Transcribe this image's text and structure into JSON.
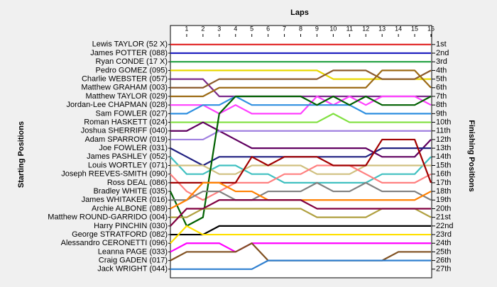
{
  "chart_data": {
    "type": "bump",
    "x_label": "Laps",
    "y_label": "Starting Positions",
    "y2_label": "Finishing Positions",
    "x": [
      0,
      1,
      2,
      3,
      4,
      5,
      6,
      7,
      8,
      9,
      10,
      11,
      12,
      13,
      14,
      15,
      16
    ],
    "xlim": [
      0,
      16
    ],
    "xticks": [
      1,
      2,
      3,
      4,
      5,
      6,
      7,
      8,
      9,
      10,
      11,
      12,
      13,
      14,
      15,
      16
    ],
    "ylim": [
      -1.2,
      28
    ],
    "finishing_labels": [
      "1st",
      "2nd",
      "3rd",
      "4th",
      "5th",
      "6th",
      "7th",
      "8th",
      "9th",
      "10th",
      "11th",
      "12th",
      "13th",
      "14th",
      "15th",
      "16th",
      "17th",
      "18th",
      "19th",
      "20th",
      "21st",
      "22nd",
      "23rd",
      "24th",
      "25th",
      "26th",
      "27th"
    ],
    "series": [
      {
        "name": "Lewis TAYLOR (52 X)",
        "color": "#e02020",
        "values": [
          1,
          1,
          1,
          1,
          1,
          1,
          1,
          1,
          1,
          1,
          1,
          1,
          1,
          1,
          1,
          1,
          1
        ]
      },
      {
        "name": "James POTTER (088)",
        "color": "#2020c0",
        "values": [
          2,
          2,
          2,
          2,
          2,
          2,
          2,
          2,
          2,
          2,
          2,
          2,
          2,
          2,
          2,
          2,
          2
        ]
      },
      {
        "name": "Ryan CONDE (17 X)",
        "color": "#20a040",
        "values": [
          3,
          3,
          3,
          3,
          3,
          3,
          3,
          3,
          3,
          3,
          3,
          3,
          3,
          3,
          3,
          3,
          3
        ]
      },
      {
        "name": "Pedro GOMEZ (095)",
        "color": "#e8d800",
        "values": [
          4,
          4,
          4,
          4,
          4,
          4,
          4,
          4,
          4,
          4,
          5,
          5,
          5,
          5,
          5,
          5,
          5
        ]
      },
      {
        "name": "Charlie WEBSTER (057)",
        "color": "#7a2a8a",
        "values": [
          5,
          5,
          5,
          7,
          7,
          7,
          7,
          7,
          7,
          7,
          7,
          7,
          7,
          7,
          7,
          7,
          7
        ]
      },
      {
        "name": "Matthew GRAHAM (003)",
        "color": "#8b5a2b",
        "values": [
          6,
          6,
          6,
          5,
          5,
          5,
          5,
          5,
          5,
          5,
          4,
          4,
          4,
          5,
          5,
          5,
          4
        ]
      },
      {
        "name": "Matthew TAYLOR (029)",
        "color": "#9c6a14",
        "values": [
          7,
          7,
          7,
          6,
          6,
          6,
          6,
          6,
          6,
          6,
          6,
          6,
          6,
          4,
          4,
          4,
          6
        ]
      },
      {
        "name": "Jordan-Lee CHAPMAN (028)",
        "color": "#ff40ff",
        "values": [
          8,
          8,
          8,
          9,
          8,
          9,
          9,
          9,
          9,
          7,
          8,
          7,
          8,
          7,
          7,
          7,
          8
        ]
      },
      {
        "name": "Sam FOWLER (027)",
        "color": "#3090e0",
        "values": [
          9,
          9,
          8,
          8,
          7,
          8,
          8,
          8,
          8,
          8,
          8,
          8,
          9,
          9,
          9,
          9,
          9
        ]
      },
      {
        "name": "Roman HASKETT (024)",
        "color": "#80e040",
        "values": [
          10,
          10,
          10,
          10,
          10,
          10,
          10,
          10,
          10,
          10,
          9,
          10,
          10,
          10,
          10,
          10,
          10
        ]
      },
      {
        "name": "Joshua SHERRIFF (040)",
        "color": "#600060",
        "values": [
          11,
          11,
          10,
          11,
          12,
          13,
          13,
          13,
          13,
          13,
          13,
          13,
          13,
          14,
          14,
          14,
          12
        ]
      },
      {
        "name": "Adam SPARROW (019)",
        "color": "#a080e0",
        "values": [
          12,
          12,
          12,
          11,
          11,
          11,
          11,
          11,
          11,
          11,
          11,
          11,
          11,
          11,
          11,
          11,
          11
        ]
      },
      {
        "name": "Joe FOWLER (031)",
        "color": "#202080",
        "values": [
          13,
          14,
          15,
          14,
          14,
          14,
          14,
          14,
          14,
          14,
          14,
          14,
          14,
          13,
          13,
          13,
          13
        ]
      },
      {
        "name": "James PASHLEY (052)",
        "color": "#40c0c0",
        "values": [
          14,
          16,
          16,
          15,
          15,
          16,
          16,
          17,
          17,
          17,
          17,
          17,
          17,
          16,
          16,
          16,
          14
        ]
      },
      {
        "name": "Louis WORTLEY (071)",
        "color": "#d0c080",
        "values": [
          15,
          15,
          15,
          16,
          16,
          15,
          15,
          15,
          15,
          16,
          16,
          16,
          15,
          15,
          15,
          15,
          15
        ]
      },
      {
        "name": "Joseph REEVES-SMITH (090)",
        "color": "#ff8080",
        "values": [
          16,
          18,
          19,
          18,
          17,
          17,
          17,
          16,
          16,
          15,
          15,
          15,
          16,
          17,
          17,
          17,
          16
        ]
      },
      {
        "name": "Ross DEAL (086)",
        "color": "#a00000",
        "values": [
          17,
          17,
          17,
          17,
          17,
          14,
          15,
          14,
          14,
          14,
          15,
          15,
          15,
          12,
          12,
          12,
          17
        ]
      },
      {
        "name": "Bradley WHITE (035)",
        "color": "#006000",
        "values": [
          18,
          22,
          21,
          9,
          7,
          7,
          7,
          7,
          7,
          8,
          7,
          8,
          7,
          8,
          8,
          8,
          7
        ]
      },
      {
        "name": "James WHITAKER (016)",
        "color": "#808080",
        "values": [
          19,
          19,
          18,
          18,
          19,
          19,
          18,
          18,
          18,
          17,
          18,
          18,
          17,
          18,
          18,
          18,
          19
        ]
      },
      {
        "name": "Archie ALBONE (089)",
        "color": "#ff8000",
        "values": [
          20,
          19,
          17,
          17,
          18,
          18,
          19,
          19,
          19,
          19,
          19,
          19,
          19,
          19,
          19,
          19,
          18
        ]
      },
      {
        "name": "Matthew ROUND-GARRIDO (004)",
        "color": "#b0a040",
        "values": [
          21,
          21,
          20,
          20,
          20,
          20,
          20,
          20,
          20,
          21,
          21,
          21,
          21,
          20,
          20,
          20,
          21
        ]
      },
      {
        "name": "Harry PINCHIN (030)",
        "color": "#800040",
        "values": [
          22,
          20,
          20,
          19,
          19,
          19,
          19,
          19,
          19,
          20,
          20,
          20,
          20,
          20,
          20,
          20,
          20
        ]
      },
      {
        "name": "George STRATFORD (082)",
        "color": "#000000",
        "values": [
          23,
          23,
          23,
          22,
          22,
          22,
          22,
          22,
          22,
          22,
          22,
          22,
          22,
          22,
          22,
          22,
          22
        ]
      },
      {
        "name": "Alessandro CERONETTI (096)",
        "color": "#ffe000",
        "values": [
          24,
          22,
          23,
          23,
          23,
          23,
          23,
          23,
          23,
          23,
          23,
          23,
          23,
          23,
          23,
          23,
          23
        ]
      },
      {
        "name": "Leanna PAGE (033)",
        "color": "#ff00ff",
        "values": [
          25,
          24,
          24,
          24,
          25,
          24,
          24,
          24,
          24,
          24,
          24,
          24,
          24,
          24,
          24,
          24,
          24
        ]
      },
      {
        "name": "Craig GADEN (017)",
        "color": "#805020",
        "values": [
          26,
          25,
          25,
          25,
          25,
          24,
          26,
          26,
          26,
          26,
          26,
          26,
          26,
          26,
          25,
          25,
          25
        ]
      },
      {
        "name": "Jack WRIGHT (044)",
        "color": "#3080d0",
        "values": [
          27,
          27,
          27,
          27,
          27,
          27,
          26,
          26,
          26,
          26,
          26,
          26,
          26,
          26,
          26,
          26,
          26
        ]
      }
    ]
  }
}
